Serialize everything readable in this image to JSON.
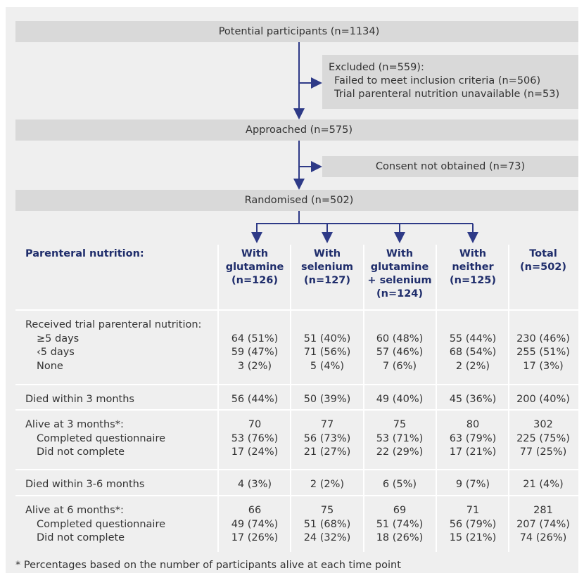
{
  "flow": {
    "potential": "Potential participants (n=1134)",
    "excluded": [
      "Excluded (n=559):",
      "Failed to meet inclusion criteria (n=506)",
      "Trial parenteral nutrition unavailable (n=53)"
    ],
    "approached": "Approached (n=575)",
    "consent": "Consent not obtained (n=73)",
    "randomised": "Randomised (n=502)"
  },
  "table": {
    "header": [
      [
        "Parenteral nutrition:"
      ],
      [
        "With",
        "glutamine",
        "(n=126)"
      ],
      [
        "With",
        "selenium",
        "(n=127)"
      ],
      [
        "With",
        "glutamine",
        "+ selenium",
        "(n=124)"
      ],
      [
        "With",
        "neither",
        "(n=125)"
      ],
      [
        "Total",
        "(n=502)"
      ]
    ],
    "rows": [
      {
        "label": "Received trial parenteral nutrition:",
        "sub": [
          [
            "≥5 days",
            "64 (51%)",
            "51 (40%)",
            "60 (48%)",
            "55 (44%)",
            "230 (46%)"
          ],
          [
            "‹5 days",
            "59 (47%)",
            "71 (56%)",
            "57 (46%)",
            "68 (54%)",
            "255 (51%)"
          ],
          [
            "None",
            "3 (2%)",
            "5 (4%)",
            "7 (6%)",
            "2 (2%)",
            "17 (3%)"
          ]
        ]
      },
      {
        "label": "Died within 3 months",
        "values": [
          "56 (44%)",
          "50 (39%)",
          "49 (40%)",
          "45 (36%)",
          "200 (40%)"
        ]
      },
      {
        "label": "Alive at 3 months*:",
        "values": [
          "70",
          "77",
          "75",
          "80",
          "302"
        ],
        "sub": [
          [
            "Completed questionnaire",
            "53 (76%)",
            "56 (73%)",
            "53 (71%)",
            "63 (79%)",
            "225 (75%)"
          ],
          [
            "Did not complete",
            "17 (24%)",
            "21 (27%)",
            "22 (29%)",
            "17 (21%)",
            "77 (25%)"
          ]
        ]
      },
      {
        "label": "Died within 3-6 months",
        "values": [
          "4 (3%)",
          "2 (2%)",
          "6 (5%)",
          "9 (7%)",
          "21 (4%)"
        ]
      },
      {
        "label": "Alive at 6 months*:",
        "values": [
          "66",
          "75",
          "69",
          "71",
          "281"
        ],
        "sub": [
          [
            "Completed questionnaire",
            "49 (74%)",
            "51 (68%)",
            "51 (74%)",
            "56 (79%)",
            "207 (74%)"
          ],
          [
            "Did not complete",
            "17 (26%)",
            "24 (32%)",
            "18 (26%)",
            "15 (21%)",
            "74 (26%)"
          ]
        ]
      }
    ],
    "footnote": "* Percentages based on the number of participants alive at each time point"
  }
}
